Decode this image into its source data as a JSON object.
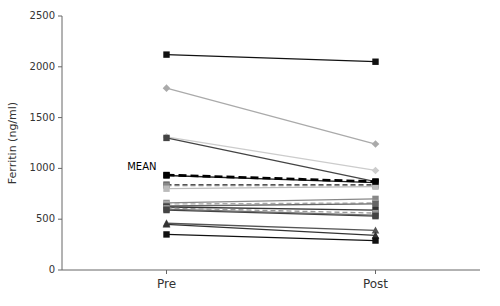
{
  "chart_data": {
    "type": "line",
    "y_label": "Ferritin (ng/ml)",
    "categories": [
      "Pre",
      "Post"
    ],
    "ylim": [
      0,
      2500
    ],
    "yticks": [
      0,
      500,
      1000,
      1500,
      2000,
      2500
    ],
    "grid": false,
    "series": [
      {
        "color": "#111111",
        "marker": "square",
        "line_style": "solid",
        "values": [
          2120,
          2050
        ]
      },
      {
        "color": "#aaaaaa",
        "marker": "diamond",
        "line_style": "solid",
        "values": [
          1790,
          1240
        ]
      },
      {
        "color": "#cccccc",
        "marker": "diamond",
        "line_style": "solid",
        "values": [
          1310,
          980
        ]
      },
      {
        "color": "#444444",
        "marker": "square",
        "line_style": "solid",
        "values": [
          1300,
          870
        ]
      },
      {
        "color": "#222222",
        "marker": "square",
        "line_style": "solid",
        "values": [
          930,
          860
        ]
      },
      {
        "color": "#555555",
        "marker": "square",
        "line_style": "dashed",
        "values": [
          840,
          840
        ]
      },
      {
        "color": "#888888",
        "marker": "square",
        "line_style": "dashed",
        "values": [
          830,
          830
        ]
      },
      {
        "color": "#bbbbbb",
        "marker": "square",
        "line_style": "solid",
        "values": [
          800,
          820
        ]
      },
      {
        "color": "#888888",
        "marker": "square",
        "line_style": "solid",
        "values": [
          660,
          700
        ]
      },
      {
        "color": "#aaaaaa",
        "marker": "square",
        "line_style": "dashed",
        "values": [
          650,
          660
        ]
      },
      {
        "color": "#666666",
        "marker": "square",
        "line_style": "solid",
        "values": [
          630,
          650
        ]
      },
      {
        "color": "#333333",
        "marker": "square",
        "line_style": "solid",
        "values": [
          620,
          590
        ]
      },
      {
        "color": "#999999",
        "marker": "square",
        "line_style": "dashed",
        "values": [
          610,
          560
        ]
      },
      {
        "color": "#777777",
        "marker": "square",
        "line_style": "solid",
        "values": [
          600,
          540
        ]
      },
      {
        "color": "#444444",
        "marker": "square",
        "line_style": "solid",
        "values": [
          590,
          530
        ]
      },
      {
        "color": "#555555",
        "marker": "triangle",
        "line_style": "solid",
        "values": [
          460,
          390
        ]
      },
      {
        "color": "#333333",
        "marker": "triangle",
        "line_style": "solid",
        "values": [
          450,
          340
        ]
      },
      {
        "color": "#111111",
        "marker": "square",
        "line_style": "solid",
        "values": [
          350,
          290
        ]
      },
      {
        "name": "MEAN",
        "color": "#000000",
        "marker": "square",
        "line_style": "dashed",
        "values": [
          935,
          870
        ]
      }
    ]
  }
}
